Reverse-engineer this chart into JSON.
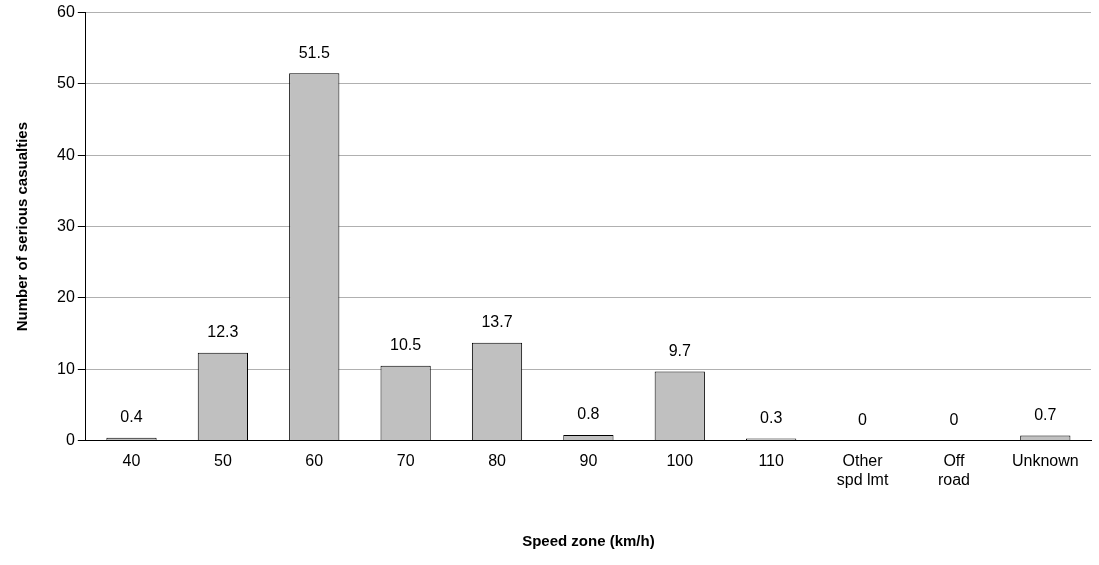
{
  "chart_data": {
    "type": "bar",
    "xlabel": "Speed zone (km/h)",
    "ylabel": "Number of serious casualties",
    "categories": [
      "40",
      "50",
      "60",
      "70",
      "80",
      "90",
      "100",
      "110",
      "Other spd lmt",
      "Off road",
      "Unknown"
    ],
    "values": [
      0.4,
      12.3,
      51.5,
      10.5,
      13.7,
      0.8,
      9.7,
      0.3,
      0,
      0,
      0.7
    ],
    "color": "#c0c0c0",
    "ylim": [
      0,
      60
    ],
    "yticks": [
      0,
      10,
      20,
      30,
      40,
      50,
      60
    ],
    "grid": "y",
    "legend": false,
    "data_labels": true
  }
}
